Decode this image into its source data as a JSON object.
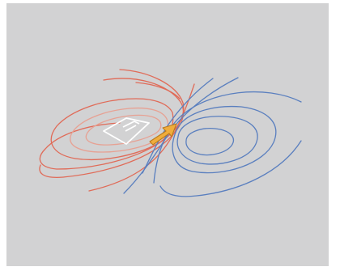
{
  "colors": {
    "page_background": "#ffffff",
    "panel_background": "#d2d2d3",
    "red_field_lines": "#e06b58",
    "red_inner_lines": "#e7a193",
    "blue_field_lines": "#5a7fbf",
    "arrow_fill": "#f0ad3c",
    "arrow_outline": "#b97a1e",
    "magnet_outline": "#ffffff"
  },
  "icons": {
    "arrow": "orange-arrow-icon",
    "magnet": "square-magnet-icon"
  }
}
